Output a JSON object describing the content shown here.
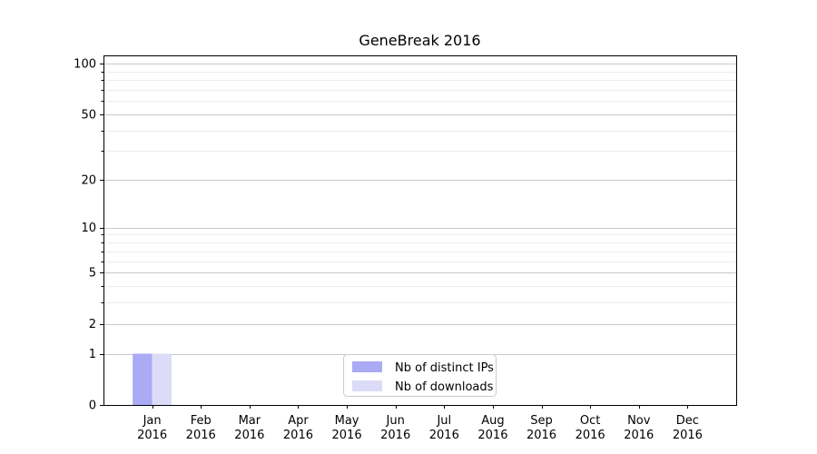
{
  "figure": {
    "title": "GeneBreak 2016"
  },
  "chart_data": {
    "type": "bar",
    "title": "GeneBreak 2016",
    "xlabel": "",
    "ylabel": "",
    "yscale": "log1p",
    "ylim": [
      0,
      112
    ],
    "grid": true,
    "legend_position": "lower center",
    "categories": [
      "Jan 2016",
      "Feb 2016",
      "Mar 2016",
      "Apr 2016",
      "May 2016",
      "Jun 2016",
      "Jul 2016",
      "Aug 2016",
      "Sep 2016",
      "Oct 2016",
      "Nov 2016",
      "Dec 2016"
    ],
    "yticks_major": [
      0,
      1,
      2,
      5,
      10,
      20,
      50,
      100
    ],
    "yticks_minor": [
      3,
      4,
      6,
      7,
      8,
      9,
      30,
      40,
      60,
      70,
      80,
      90
    ],
    "series": [
      {
        "name": "Nb of distinct IPs",
        "color": "#aaaaf5",
        "values": [
          1,
          0,
          0,
          0,
          0,
          0,
          0,
          0,
          0,
          0,
          0,
          0
        ]
      },
      {
        "name": "Nb of downloads",
        "color": "#dcdcf8",
        "values": [
          1,
          0,
          0,
          0,
          0,
          0,
          0,
          0,
          0,
          0,
          0,
          0
        ]
      }
    ],
    "colors": {
      "grid_major": "#c9c9c9",
      "grid_minor": "#ececec",
      "spine": "#000000",
      "tick_text": "#000000",
      "legend_border": "#cccccc",
      "background": "#ffffff"
    }
  }
}
